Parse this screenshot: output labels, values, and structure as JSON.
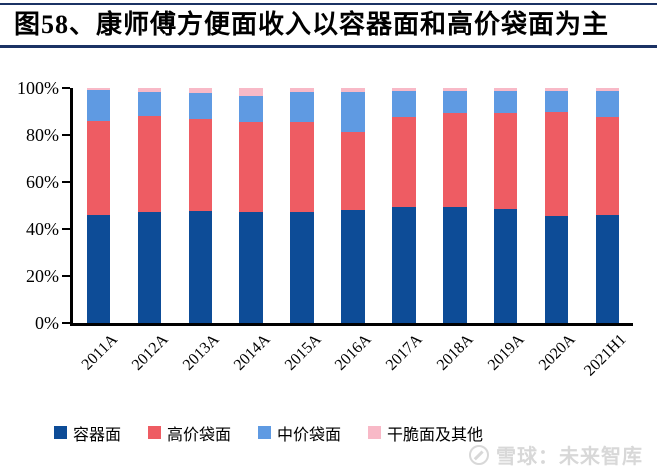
{
  "header": {
    "title": "图58、康师傅方便面收入以容器面和高价袋面为主"
  },
  "colors": {
    "accent_rule": "#1b3264",
    "axis": "#000000",
    "watermark": "#d8d8d8"
  },
  "watermark": {
    "logo": "xueqiu-circle-logo",
    "text": "雪球：未来智库"
  },
  "chart_data": {
    "type": "bar",
    "stacked": true,
    "percent_stacked": true,
    "title": "图58、康师傅方便面收入以容器面和高价袋面为主",
    "xlabel": "",
    "ylabel": "",
    "ylim": [
      0,
      100
    ],
    "yticks": [
      "0%",
      "20%",
      "40%",
      "60%",
      "80%",
      "100%"
    ],
    "grid": false,
    "legend_position": "bottom",
    "categories": [
      "2011A",
      "2012A",
      "2013A",
      "2014A",
      "2015A",
      "2016A",
      "2017A",
      "2018A",
      "2019A",
      "2020A",
      "2021H1"
    ],
    "series": [
      {
        "name": "容器面",
        "key": "container-noodles",
        "color": "#0d4c97",
        "values": [
          46,
          47,
          47.5,
          47,
          47,
          48,
          49,
          49,
          48.5,
          45.5,
          46
        ]
      },
      {
        "name": "高价袋面",
        "key": "premium-bag-noodles",
        "color": "#ee5c63",
        "values": [
          40,
          41,
          39,
          38.5,
          38.5,
          33,
          38.5,
          40,
          40.5,
          44,
          41.5
        ]
      },
      {
        "name": "中价袋面",
        "key": "mid-price-bag-noodles",
        "color": "#5f9ae2",
        "values": [
          13,
          10,
          11,
          11,
          12.5,
          17,
          11,
          9.5,
          9.5,
          9,
          11
        ]
      },
      {
        "name": "干脆面及其他",
        "key": "crispy-noodles-and-others",
        "color": "#f8b9c7",
        "values": [
          1,
          2,
          2.5,
          3.5,
          2,
          2,
          1.5,
          1.5,
          1.5,
          1.5,
          1.5
        ]
      }
    ]
  }
}
